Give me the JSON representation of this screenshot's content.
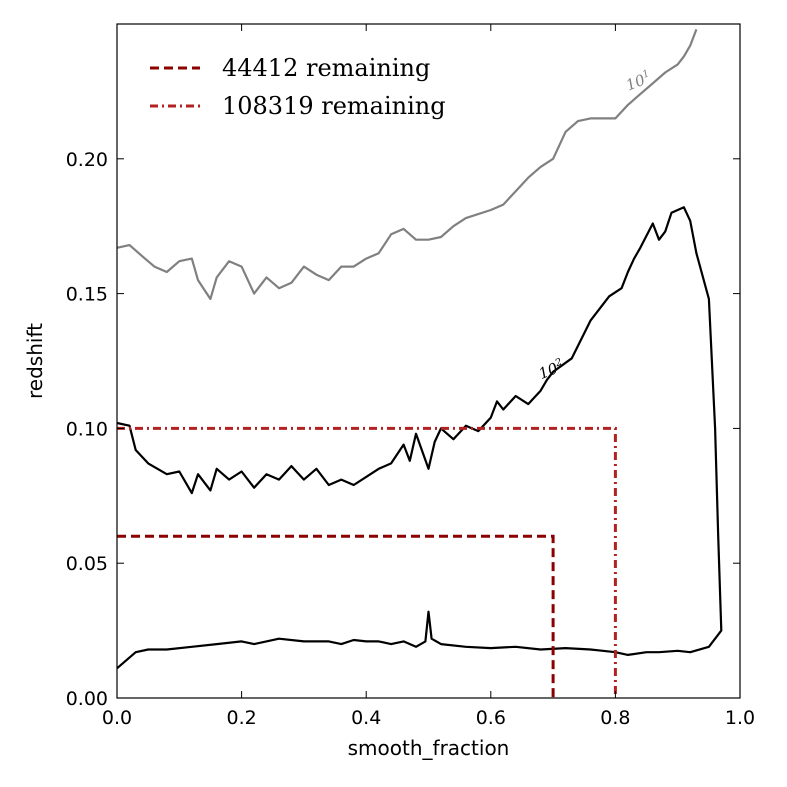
{
  "chart_data": {
    "type": "line",
    "title": "",
    "xlabel": "smooth_fraction",
    "ylabel": "redshift",
    "xlim": [
      0.0,
      1.0
    ],
    "ylim": [
      0.0,
      0.25
    ],
    "xticks": [
      0.0,
      0.2,
      0.4,
      0.6,
      0.8,
      1.0
    ],
    "xtick_labels": [
      "0.0",
      "0.2",
      "0.4",
      "0.6",
      "0.8",
      "1.0"
    ],
    "yticks": [
      0.0,
      0.05,
      0.1,
      0.15,
      0.2
    ],
    "ytick_labels": [
      "0.00",
      "0.05",
      "0.10",
      "0.15",
      "0.20"
    ],
    "grid": false,
    "legend_position": "top-left",
    "colors": {
      "dark_red": "#8b0000",
      "red": "#b22222",
      "contour_high": "#000000",
      "contour_mid": "#808080",
      "contour_low": "#b0b0b0"
    },
    "series": [
      {
        "name": "44412 remaining",
        "style": "dashed",
        "color": "#8b0000",
        "x": [
          0.0,
          0.7,
          0.7
        ],
        "y": [
          0.06,
          0.06,
          0.0
        ]
      },
      {
        "name": "108319 remaining",
        "style": "dashdot",
        "color": "#b22222",
        "x": [
          0.0,
          0.8,
          0.8
        ],
        "y": [
          0.1,
          0.1,
          0.0
        ]
      }
    ],
    "contour_labels": [
      {
        "text": "10",
        "exponent": "1",
        "x": 0.84,
        "y": 0.227,
        "color": "#808080"
      },
      {
        "text": "10",
        "exponent": "2",
        "x": 0.7,
        "y": 0.12,
        "color": "#000000"
      }
    ],
    "contours": [
      {
        "level": "10^2",
        "color": "#000000",
        "points": [
          [
            0.0,
            0.102
          ],
          [
            0.02,
            0.101
          ],
          [
            0.03,
            0.092
          ],
          [
            0.05,
            0.087
          ],
          [
            0.08,
            0.083
          ],
          [
            0.1,
            0.084
          ],
          [
            0.12,
            0.076
          ],
          [
            0.13,
            0.083
          ],
          [
            0.15,
            0.077
          ],
          [
            0.16,
            0.085
          ],
          [
            0.18,
            0.081
          ],
          [
            0.2,
            0.084
          ],
          [
            0.22,
            0.078
          ],
          [
            0.24,
            0.083
          ],
          [
            0.26,
            0.081
          ],
          [
            0.28,
            0.086
          ],
          [
            0.3,
            0.081
          ],
          [
            0.32,
            0.085
          ],
          [
            0.34,
            0.079
          ],
          [
            0.36,
            0.081
          ],
          [
            0.38,
            0.079
          ],
          [
            0.4,
            0.082
          ],
          [
            0.42,
            0.085
          ],
          [
            0.44,
            0.087
          ],
          [
            0.46,
            0.094
          ],
          [
            0.47,
            0.088
          ],
          [
            0.48,
            0.098
          ],
          [
            0.5,
            0.085
          ],
          [
            0.51,
            0.095
          ],
          [
            0.52,
            0.1
          ],
          [
            0.54,
            0.096
          ],
          [
            0.56,
            0.101
          ],
          [
            0.58,
            0.099
          ],
          [
            0.6,
            0.104
          ],
          [
            0.61,
            0.11
          ],
          [
            0.62,
            0.107
          ],
          [
            0.64,
            0.112
          ],
          [
            0.66,
            0.109
          ],
          [
            0.68,
            0.114
          ],
          [
            0.69,
            0.118
          ],
          [
            0.7,
            0.121
          ],
          [
            0.73,
            0.126
          ],
          [
            0.76,
            0.14
          ],
          [
            0.79,
            0.149
          ],
          [
            0.81,
            0.152
          ],
          [
            0.82,
            0.158
          ],
          [
            0.83,
            0.163
          ],
          [
            0.84,
            0.167
          ],
          [
            0.86,
            0.176
          ],
          [
            0.87,
            0.17
          ],
          [
            0.88,
            0.173
          ],
          [
            0.89,
            0.18
          ],
          [
            0.91,
            0.182
          ],
          [
            0.92,
            0.177
          ],
          [
            0.93,
            0.165
          ],
          [
            0.95,
            0.148
          ],
          [
            0.96,
            0.1
          ],
          [
            0.965,
            0.06
          ],
          [
            0.97,
            0.025
          ],
          [
            0.96,
            0.022
          ],
          [
            0.95,
            0.019
          ],
          [
            0.92,
            0.017
          ],
          [
            0.9,
            0.0175
          ],
          [
            0.87,
            0.017
          ],
          [
            0.85,
            0.017
          ],
          [
            0.82,
            0.016
          ],
          [
            0.8,
            0.017
          ],
          [
            0.78,
            0.0175
          ],
          [
            0.76,
            0.018
          ],
          [
            0.72,
            0.0185
          ],
          [
            0.68,
            0.018
          ],
          [
            0.64,
            0.019
          ],
          [
            0.6,
            0.0185
          ],
          [
            0.56,
            0.019
          ],
          [
            0.52,
            0.02
          ],
          [
            0.505,
            0.022
          ],
          [
            0.5,
            0.032
          ],
          [
            0.495,
            0.021
          ],
          [
            0.48,
            0.019
          ],
          [
            0.46,
            0.021
          ],
          [
            0.44,
            0.02
          ],
          [
            0.42,
            0.021
          ],
          [
            0.4,
            0.021
          ],
          [
            0.38,
            0.0215
          ],
          [
            0.36,
            0.02
          ],
          [
            0.34,
            0.021
          ],
          [
            0.3,
            0.021
          ],
          [
            0.26,
            0.022
          ],
          [
            0.22,
            0.02
          ],
          [
            0.2,
            0.021
          ],
          [
            0.16,
            0.02
          ],
          [
            0.12,
            0.019
          ],
          [
            0.08,
            0.018
          ],
          [
            0.05,
            0.018
          ],
          [
            0.03,
            0.017
          ],
          [
            0.0,
            0.011
          ]
        ]
      },
      {
        "level": "10^1",
        "color": "#808080",
        "points": [
          [
            0.0,
            0.167
          ],
          [
            0.02,
            0.168
          ],
          [
            0.04,
            0.164
          ],
          [
            0.06,
            0.16
          ],
          [
            0.08,
            0.158
          ],
          [
            0.1,
            0.162
          ],
          [
            0.12,
            0.163
          ],
          [
            0.13,
            0.155
          ],
          [
            0.15,
            0.148
          ],
          [
            0.16,
            0.156
          ],
          [
            0.18,
            0.162
          ],
          [
            0.2,
            0.16
          ],
          [
            0.22,
            0.15
          ],
          [
            0.24,
            0.156
          ],
          [
            0.26,
            0.152
          ],
          [
            0.28,
            0.154
          ],
          [
            0.3,
            0.16
          ],
          [
            0.32,
            0.157
          ],
          [
            0.34,
            0.155
          ],
          [
            0.36,
            0.16
          ],
          [
            0.38,
            0.16
          ],
          [
            0.4,
            0.163
          ],
          [
            0.42,
            0.165
          ],
          [
            0.44,
            0.172
          ],
          [
            0.46,
            0.174
          ],
          [
            0.48,
            0.17
          ],
          [
            0.5,
            0.17
          ],
          [
            0.52,
            0.171
          ],
          [
            0.54,
            0.175
          ],
          [
            0.56,
            0.178
          ],
          [
            0.6,
            0.181
          ],
          [
            0.62,
            0.183
          ],
          [
            0.64,
            0.188
          ],
          [
            0.66,
            0.193
          ],
          [
            0.68,
            0.197
          ],
          [
            0.7,
            0.2
          ],
          [
            0.72,
            0.21
          ],
          [
            0.74,
            0.214
          ],
          [
            0.76,
            0.215
          ],
          [
            0.8,
            0.215
          ],
          [
            0.82,
            0.22
          ],
          [
            0.84,
            0.224
          ],
          [
            0.86,
            0.228
          ],
          [
            0.88,
            0.232
          ],
          [
            0.9,
            0.235
          ],
          [
            0.91,
            0.238
          ],
          [
            0.92,
            0.242
          ],
          [
            0.93,
            0.248
          ]
        ]
      }
    ]
  }
}
